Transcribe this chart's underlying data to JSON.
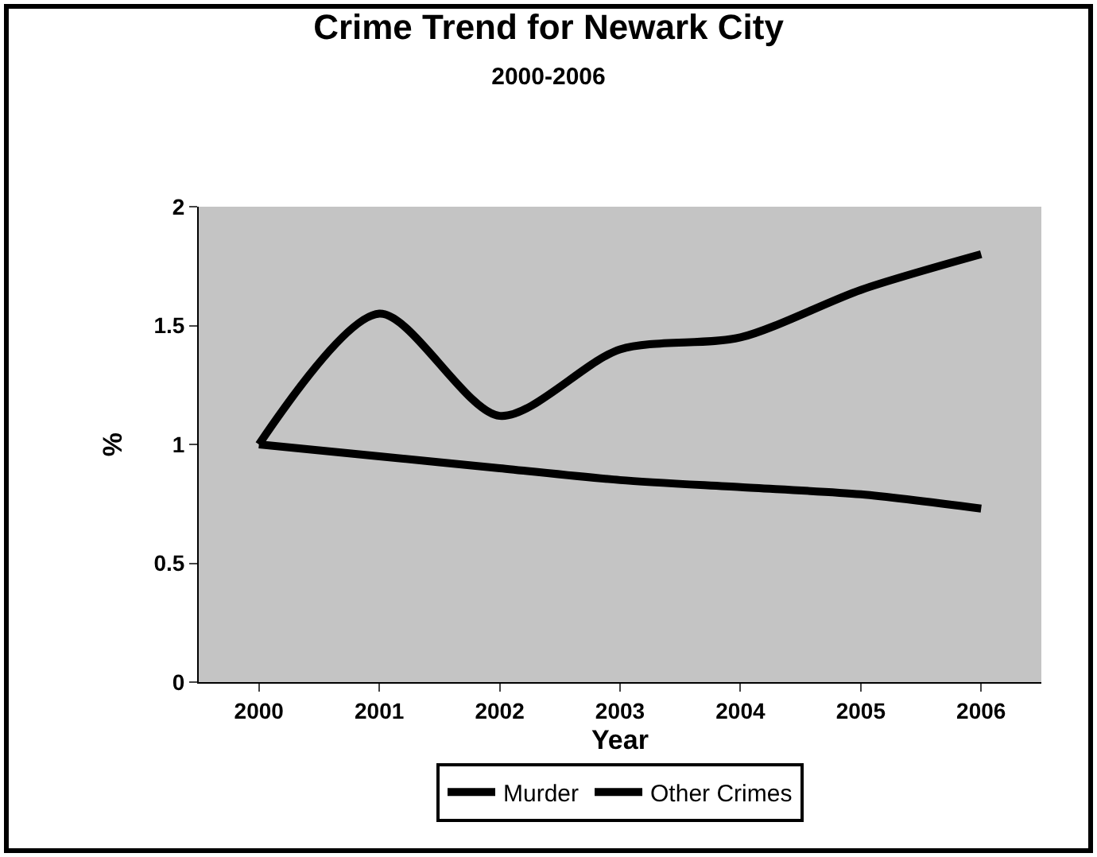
{
  "chart_data": {
    "type": "line",
    "title": "Crime Trend for Newark City",
    "subtitle": "2000-2006",
    "xlabel": "Year",
    "ylabel": "%",
    "categories": [
      "2000",
      "2001",
      "2002",
      "2003",
      "2004",
      "2005",
      "2006"
    ],
    "series": [
      {
        "name": "Murder",
        "color": "#000000",
        "values": [
          1.0,
          0.95,
          0.9,
          0.85,
          0.82,
          0.79,
          0.73
        ]
      },
      {
        "name": "Other Crimes",
        "color": "#000000",
        "values": [
          1.0,
          1.55,
          1.12,
          1.4,
          1.45,
          1.65,
          1.8
        ]
      }
    ],
    "ylim": [
      0,
      2
    ],
    "yticks": [
      0,
      0.5,
      1,
      1.5,
      2
    ],
    "grid": false,
    "legend": "bottom",
    "marker": "none",
    "line_style": "solid"
  }
}
